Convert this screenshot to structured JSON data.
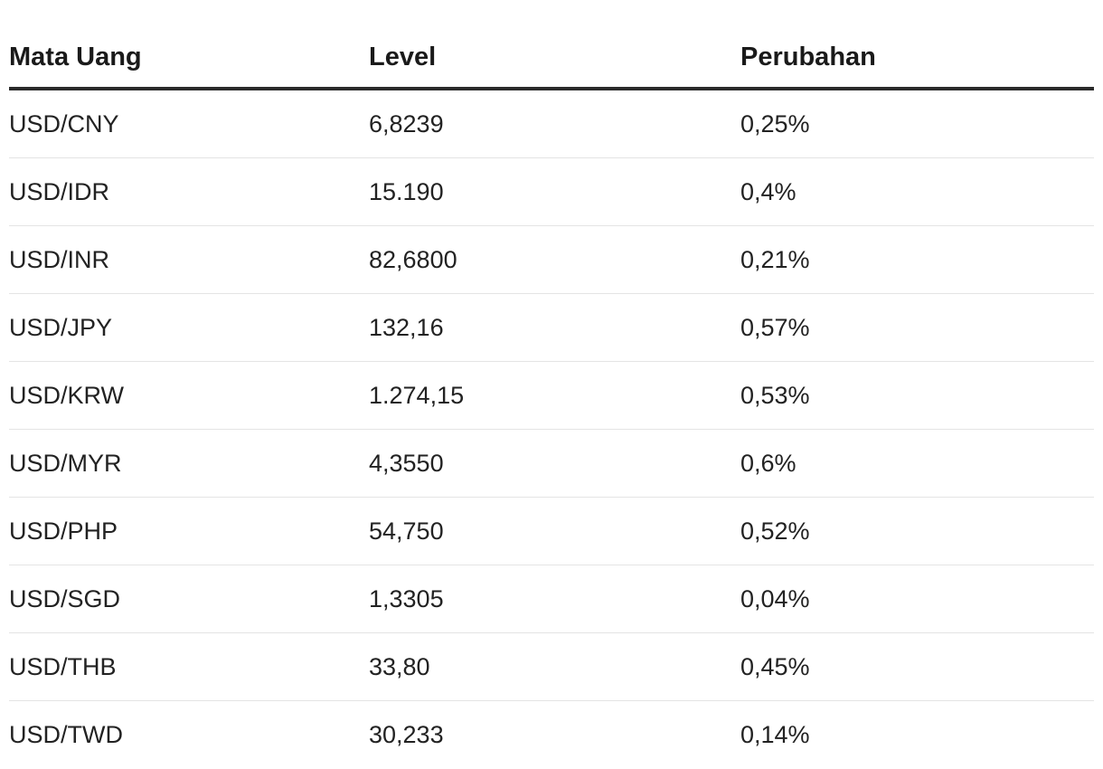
{
  "table": {
    "headers": [
      "Mata Uang",
      "Level",
      "Perubahan"
    ],
    "rows": [
      {
        "pair": "USD/CNY",
        "level": "6,8239",
        "change": "0,25%"
      },
      {
        "pair": "USD/IDR",
        "level": "15.190",
        "change": "0,4%"
      },
      {
        "pair": "USD/INR",
        "level": "82,6800",
        "change": "0,21%"
      },
      {
        "pair": "USD/JPY",
        "level": "132,16",
        "change": "0,57%"
      },
      {
        "pair": "USD/KRW",
        "level": "1.274,15",
        "change": "0,53%"
      },
      {
        "pair": "USD/MYR",
        "level": "4,3550",
        "change": "0,6%"
      },
      {
        "pair": "USD/PHP",
        "level": "54,750",
        "change": "0,52%"
      },
      {
        "pair": "USD/SGD",
        "level": "1,3305",
        "change": "0,04%"
      },
      {
        "pair": "USD/THB",
        "level": "33,80",
        "change": "0,45%"
      },
      {
        "pair": "USD/TWD",
        "level": "30,233",
        "change": "0,14%"
      }
    ]
  },
  "colors": {
    "text": "#222222",
    "header_rule": "#2a2a2a",
    "row_rule": "#e4e4e4"
  }
}
